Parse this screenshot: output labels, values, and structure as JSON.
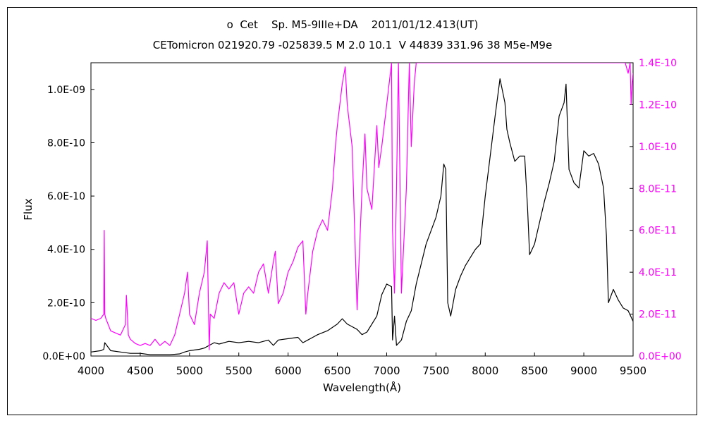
{
  "chart_data": {
    "type": "line",
    "title": "o  Cet    Sp. M5-9IIIe+DA    2011/01/12.413(UT)",
    "subtitle": "CETomicron 021920.79 -025839.5 M 2.0 10.1  V 44839 331.96 38 M5e-M9e",
    "xlabel": "Wavelength(Å)",
    "ylabel": "Flux",
    "xlim": [
      4000,
      9500
    ],
    "ylim": [
      0,
      1.1e-09
    ],
    "y2lim": [
      0,
      1.4e-10
    ],
    "xticks": [
      "4000",
      "4500",
      "5000",
      "5500",
      "6000",
      "6500",
      "7000",
      "7500",
      "8000",
      "8500",
      "9000",
      "9500"
    ],
    "yticks": [
      "0.0E+00",
      "2.0E-10",
      "4.0E-10",
      "6.0E-10",
      "8.0E-10",
      "1.0E-09"
    ],
    "y2ticks": [
      "0.0E+00",
      "2.0E-11",
      "4.0E-11",
      "6.0E-11",
      "8.0E-11",
      "1.0E-10",
      "1.2E-10",
      "1.4E-10"
    ],
    "grid": false,
    "series": [
      {
        "axis": "left",
        "color": "#000000",
        "x": [
          4000,
          4100,
          4130,
          4140,
          4200,
          4300,
          4400,
          4500,
          4600,
          4700,
          4800,
          4900,
          4950,
          5000,
          5100,
          5150,
          5200,
          5250,
          5300,
          5400,
          5500,
          5600,
          5700,
          5800,
          5850,
          5900,
          6000,
          6100,
          6150,
          6200,
          6250,
          6300,
          6400,
          6500,
          6550,
          6600,
          6650,
          6700,
          6750,
          6800,
          6900,
          6950,
          7000,
          7050,
          7060,
          7080,
          7100,
          7150,
          7200,
          7250,
          7300,
          7400,
          7500,
          7550,
          7580,
          7600,
          7620,
          7650,
          7700,
          7750,
          7800,
          7850,
          7900,
          7950,
          8000,
          8050,
          8100,
          8150,
          8200,
          8220,
          8250,
          8300,
          8350,
          8400,
          8430,
          8450,
          8500,
          8550,
          8600,
          8650,
          8700,
          8750,
          8800,
          8820,
          8850,
          8900,
          8950,
          9000,
          9050,
          9100,
          9150,
          9200,
          9230,
          9250,
          9300,
          9350,
          9400,
          9450,
          9500
        ],
        "y": [
          1.5e-11,
          2e-11,
          2.5e-11,
          5e-11,
          2e-11,
          1.5e-11,
          1e-11,
          1e-11,
          5e-12,
          5e-12,
          5e-12,
          8e-12,
          1.5e-11,
          2e-11,
          2.5e-11,
          3e-11,
          4e-11,
          5e-11,
          4.5e-11,
          5.5e-11,
          5e-11,
          5.5e-11,
          5e-11,
          6e-11,
          4e-11,
          6e-11,
          6.5e-11,
          7e-11,
          5e-11,
          6e-11,
          7e-11,
          8e-11,
          9.5e-11,
          1.2e-10,
          1.4e-10,
          1.2e-10,
          1.1e-10,
          1e-10,
          8e-11,
          9e-11,
          1.5e-10,
          2.3e-10,
          2.7e-10,
          2.6e-10,
          6e-11,
          1.5e-10,
          4e-11,
          6e-11,
          1.3e-10,
          1.7e-10,
          2.7e-10,
          4.2e-10,
          5.2e-10,
          6e-10,
          7.2e-10,
          7e-10,
          2e-10,
          1.5e-10,
          2.5e-10,
          3e-10,
          3.4e-10,
          3.7e-10,
          4e-10,
          4.2e-10,
          6e-10,
          7.5e-10,
          9e-10,
          1.04e-09,
          9.5e-10,
          8.5e-10,
          8e-10,
          7.3e-10,
          7.5e-10,
          7.5e-10,
          5.5e-10,
          3.8e-10,
          4.2e-10,
          5e-10,
          5.8e-10,
          6.5e-10,
          7.3e-10,
          9e-10,
          9.5e-10,
          1.02e-09,
          7e-10,
          6.5e-10,
          6.3e-10,
          7.7e-10,
          7.5e-10,
          7.6e-10,
          7.2e-10,
          6.3e-10,
          4.5e-10,
          2e-10,
          2.5e-10,
          2.1e-10,
          1.8e-10,
          1.7e-10,
          1.3e-10
        ]
      },
      {
        "axis": "right",
        "color": "#ff00ff",
        "x": [
          4000,
          4050,
          4100,
          4130,
          4135,
          4140,
          4150,
          4200,
          4300,
          4350,
          4360,
          4380,
          4400,
          4450,
          4500,
          4550,
          4600,
          4650,
          4700,
          4750,
          4800,
          4850,
          4900,
          4950,
          4980,
          5000,
          5050,
          5100,
          5150,
          5180,
          5200,
          5210,
          5250,
          5300,
          5350,
          5400,
          5450,
          5500,
          5550,
          5600,
          5650,
          5700,
          5750,
          5800,
          5850,
          5870,
          5900,
          5950,
          6000,
          6050,
          6100,
          6150,
          6180,
          6200,
          6250,
          6300,
          6350,
          6400,
          6450,
          6480,
          6500,
          6550,
          6580,
          6600,
          6650,
          6700,
          6750,
          6780,
          6800,
          6850,
          6900,
          6920,
          6950,
          7000,
          7050,
          7060,
          7080,
          7100,
          7120,
          7150,
          7200,
          7230,
          7250,
          7280,
          7300,
          9420,
          9450,
          9470,
          9480,
          9490,
          9500
        ],
        "y": [
          1.8e-11,
          1.7e-11,
          1.8e-11,
          2e-11,
          6e-11,
          2e-11,
          1.8e-11,
          1.2e-11,
          1e-11,
          1.5e-11,
          2.9e-11,
          1e-11,
          8e-12,
          6e-12,
          5e-12,
          6e-12,
          5e-12,
          8e-12,
          5e-12,
          7e-12,
          5e-12,
          1e-11,
          2e-11,
          3e-11,
          4e-11,
          2e-11,
          1.5e-11,
          3e-11,
          4e-11,
          5.5e-11,
          3e-12,
          2e-11,
          1.8e-11,
          3e-11,
          3.5e-11,
          3.2e-11,
          3.5e-11,
          2e-11,
          3e-11,
          3.3e-11,
          3e-11,
          4e-11,
          4.4e-11,
          3e-11,
          4.5e-11,
          5e-11,
          2.5e-11,
          3e-11,
          4e-11,
          4.5e-11,
          5.2e-11,
          5.5e-11,
          2e-11,
          3e-11,
          5e-11,
          6e-11,
          6.5e-11,
          6e-11,
          8e-11,
          1e-10,
          1.1e-10,
          1.3e-10,
          1.38e-10,
          1.2e-10,
          1e-10,
          2.2e-11,
          8e-11,
          1.06e-10,
          8e-11,
          7e-11,
          1.1e-10,
          9e-11,
          1e-10,
          1.2e-10,
          1.4e-10,
          6e-11,
          3e-11,
          8e-11,
          1.4e-10,
          3e-11,
          8e-11,
          1.4e-10,
          1e-10,
          1.3e-10,
          1.4e-10,
          1.4e-10,
          1.35e-10,
          1.4e-10,
          1.2e-10,
          1.3e-10,
          1.35e-10
        ]
      }
    ]
  }
}
